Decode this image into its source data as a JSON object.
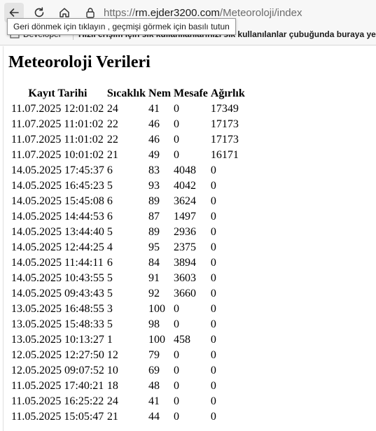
{
  "browser": {
    "url_scheme": "https://",
    "url_host": "rm.ejder3200.com",
    "url_path": "/Meteoroloji/index",
    "tooltip": "Geri dönmek için tıklayın , geçmişi görmek için basılı tutun",
    "favorites": {
      "developer": "Developer",
      "hint": "Hızlı erişim için sık kullanılanlarınızı sık kullanılanlar çubuğunda buraya yerle"
    }
  },
  "page": {
    "title": "Meteoroloji Verileri",
    "headers": [
      "Kayıt Tarihi",
      "Sıcaklık",
      "Nem",
      "Mesafe",
      "Ağırlık"
    ],
    "rows": [
      [
        "11.07.2025 12:01:02",
        "24",
        "41",
        "0",
        "17349"
      ],
      [
        "11.07.2025 11:01:02",
        "22",
        "46",
        "0",
        "17173"
      ],
      [
        "11.07.2025 11:01:02",
        "22",
        "46",
        "0",
        "17173"
      ],
      [
        "11.07.2025 10:01:02",
        "21",
        "49",
        "0",
        "16171"
      ],
      [
        "14.05.2025 17:45:37",
        "6",
        "83",
        "4048",
        "0"
      ],
      [
        "14.05.2025 16:45:23",
        "5",
        "93",
        "4042",
        "0"
      ],
      [
        "14.05.2025 15:45:08",
        "6",
        "89",
        "3624",
        "0"
      ],
      [
        "14.05.2025 14:44:53",
        "6",
        "87",
        "1497",
        "0"
      ],
      [
        "14.05.2025 13:44:40",
        "5",
        "89",
        "2936",
        "0"
      ],
      [
        "14.05.2025 12:44:25",
        "4",
        "95",
        "2375",
        "0"
      ],
      [
        "14.05.2025 11:44:11",
        "6",
        "84",
        "3894",
        "0"
      ],
      [
        "14.05.2025 10:43:55",
        "5",
        "91",
        "3603",
        "0"
      ],
      [
        "14.05.2025 09:43:43",
        "5",
        "92",
        "3660",
        "0"
      ],
      [
        "13.05.2025 16:48:55",
        "3",
        "100",
        "0",
        "0"
      ],
      [
        "13.05.2025 15:48:33",
        "5",
        "98",
        "0",
        "0"
      ],
      [
        "13.05.2025 10:13:27",
        "1",
        "100",
        "458",
        "0"
      ],
      [
        "12.05.2025 12:27:50",
        "12",
        "79",
        "0",
        "0"
      ],
      [
        "12.05.2025 09:07:52",
        "10",
        "69",
        "0",
        "0"
      ],
      [
        "11.05.2025 17:40:21",
        "18",
        "48",
        "0",
        "0"
      ],
      [
        "11.05.2025 16:25:22",
        "24",
        "41",
        "0",
        "0"
      ],
      [
        "11.05.2025 15:05:47",
        "21",
        "44",
        "0",
        "0"
      ]
    ]
  }
}
